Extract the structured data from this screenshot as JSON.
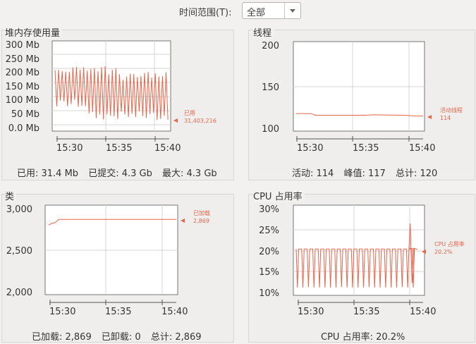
{
  "toolbar": {
    "time_range_label": "时间范围(T):",
    "time_range_value": "全部"
  },
  "colors": {
    "series": "#e8654a",
    "grid": "#cfcfcf",
    "axis": "#555555"
  },
  "heap": {
    "title": "堆内存使用量",
    "legend_name": "已用",
    "legend_value": "31,403,216",
    "footer": {
      "used": "已用: 31.4 Mb",
      "committed": "已提交: 4.3 Gb",
      "max": "最大: 4.3 Gb"
    },
    "chart_data": {
      "type": "line",
      "y_ticks": [
        "300 Mb",
        "250 Mb",
        "200 Mb",
        "150 Mb",
        "100 Mb",
        "50 Mb",
        "0.0 Mb"
      ],
      "ylim": [
        0,
        300
      ],
      "x_ticks": [
        "15:30",
        "15:35",
        "15:40"
      ],
      "series": [
        {
          "name": "已用",
          "last_value": 31.4,
          "min": 30,
          "max": 215
        }
      ]
    }
  },
  "threads": {
    "title": "线程",
    "legend_name": "活动线程",
    "legend_value": "114",
    "footer": {
      "live": "活动: 114",
      "peak": "峰值: 117",
      "total": "总计: 120"
    },
    "chart_data": {
      "type": "line",
      "y_ticks": [
        "200",
        "150",
        "100"
      ],
      "ylim": [
        100,
        200
      ],
      "x_ticks": [
        "15:30",
        "15:35",
        "15:40"
      ],
      "series": [
        {
          "name": "活动线程",
          "points": [
            [
              0,
              117
            ],
            [
              0.12,
              117
            ],
            [
              0.15,
              115
            ],
            [
              0.55,
              115
            ],
            [
              0.6,
              115.5
            ],
            [
              0.85,
              115
            ],
            [
              0.95,
              114
            ],
            [
              1,
              114
            ]
          ]
        }
      ]
    }
  },
  "classes": {
    "title": "类",
    "legend_name": "已加载",
    "legend_value": "2,869",
    "footer": {
      "loaded": "已加载: 2,869",
      "unloaded": "已卸载: 0",
      "total": "总计: 2,869"
    },
    "chart_data": {
      "type": "line",
      "y_ticks": [
        "3,000",
        "2,500",
        "2,000"
      ],
      "ylim": [
        2000,
        3000
      ],
      "x_ticks": [
        "15:30",
        "15:35",
        "15:40"
      ],
      "series": [
        {
          "name": "已加载",
          "points": [
            [
              0,
              2800
            ],
            [
              0.02,
              2820
            ],
            [
              0.05,
              2830
            ],
            [
              0.08,
              2869
            ],
            [
              1,
              2869
            ]
          ]
        }
      ]
    }
  },
  "cpu": {
    "title": "CPU 占用率",
    "legend_name": "CPU 占用率",
    "legend_value": "20.2%",
    "footer": {
      "usage": "CPU 占用率: 20.2%"
    },
    "chart_data": {
      "type": "line",
      "y_ticks": [
        "30%",
        "25%",
        "20%",
        "15%",
        "10%"
      ],
      "ylim": [
        9,
        31
      ],
      "x_ticks": [
        "15:30",
        "15:35",
        "15:40"
      ],
      "series": [
        {
          "name": "CPU 占用率",
          "last_value": 20.2,
          "min": 10.5,
          "max": 26.5
        }
      ]
    }
  }
}
